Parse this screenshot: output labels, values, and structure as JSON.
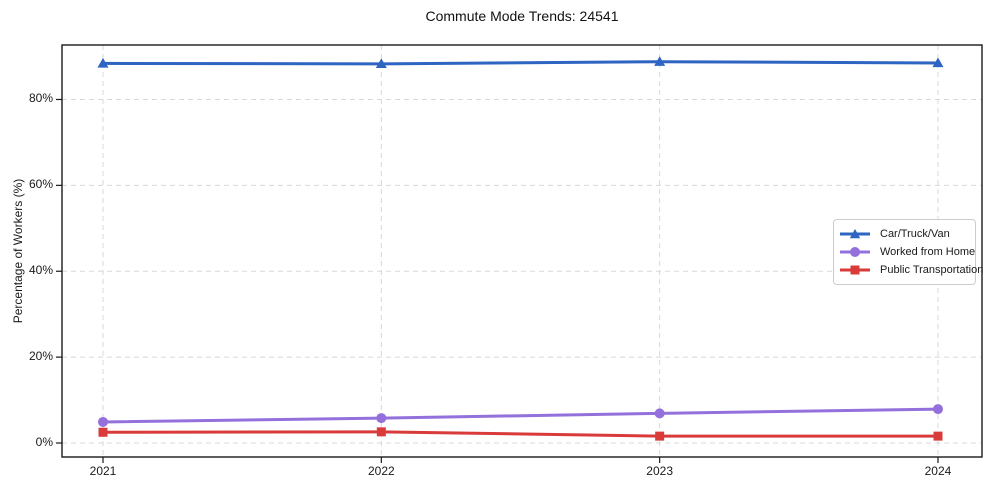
{
  "chart_data": {
    "type": "line",
    "title": "Commute Mode Trends: 24541",
    "xlabel": "",
    "ylabel": "Percentage of Workers (%)",
    "categories": [
      "2021",
      "2022",
      "2023",
      "2024"
    ],
    "series": [
      {
        "name": "Car/Truck/Van",
        "color": "#2e64c2",
        "marker": "triangle",
        "values": [
          88.4,
          88.3,
          88.8,
          88.5
        ]
      },
      {
        "name": "Worked from Home",
        "color": "#9370db",
        "marker": "circle",
        "values": [
          4.9,
          5.8,
          6.9,
          7.9
        ]
      },
      {
        "name": "Public Transportation",
        "color": "#d93b3b",
        "marker": "square",
        "values": [
          2.5,
          2.6,
          1.6,
          1.6
        ]
      }
    ],
    "yticks": [
      {
        "value": 0,
        "label": "0%"
      },
      {
        "value": 20,
        "label": "20%"
      },
      {
        "value": 40,
        "label": "40%"
      },
      {
        "value": 60,
        "label": "60%"
      },
      {
        "value": 80,
        "label": "80%"
      }
    ],
    "ylim": [
      -3.5,
      92.5
    ],
    "grid": true,
    "grid_style": "dashed",
    "legend_position": "center-right",
    "colors": {
      "axis": "#1a1a1a",
      "gridline": "#d8d8d8",
      "background": "#ffffff"
    }
  }
}
